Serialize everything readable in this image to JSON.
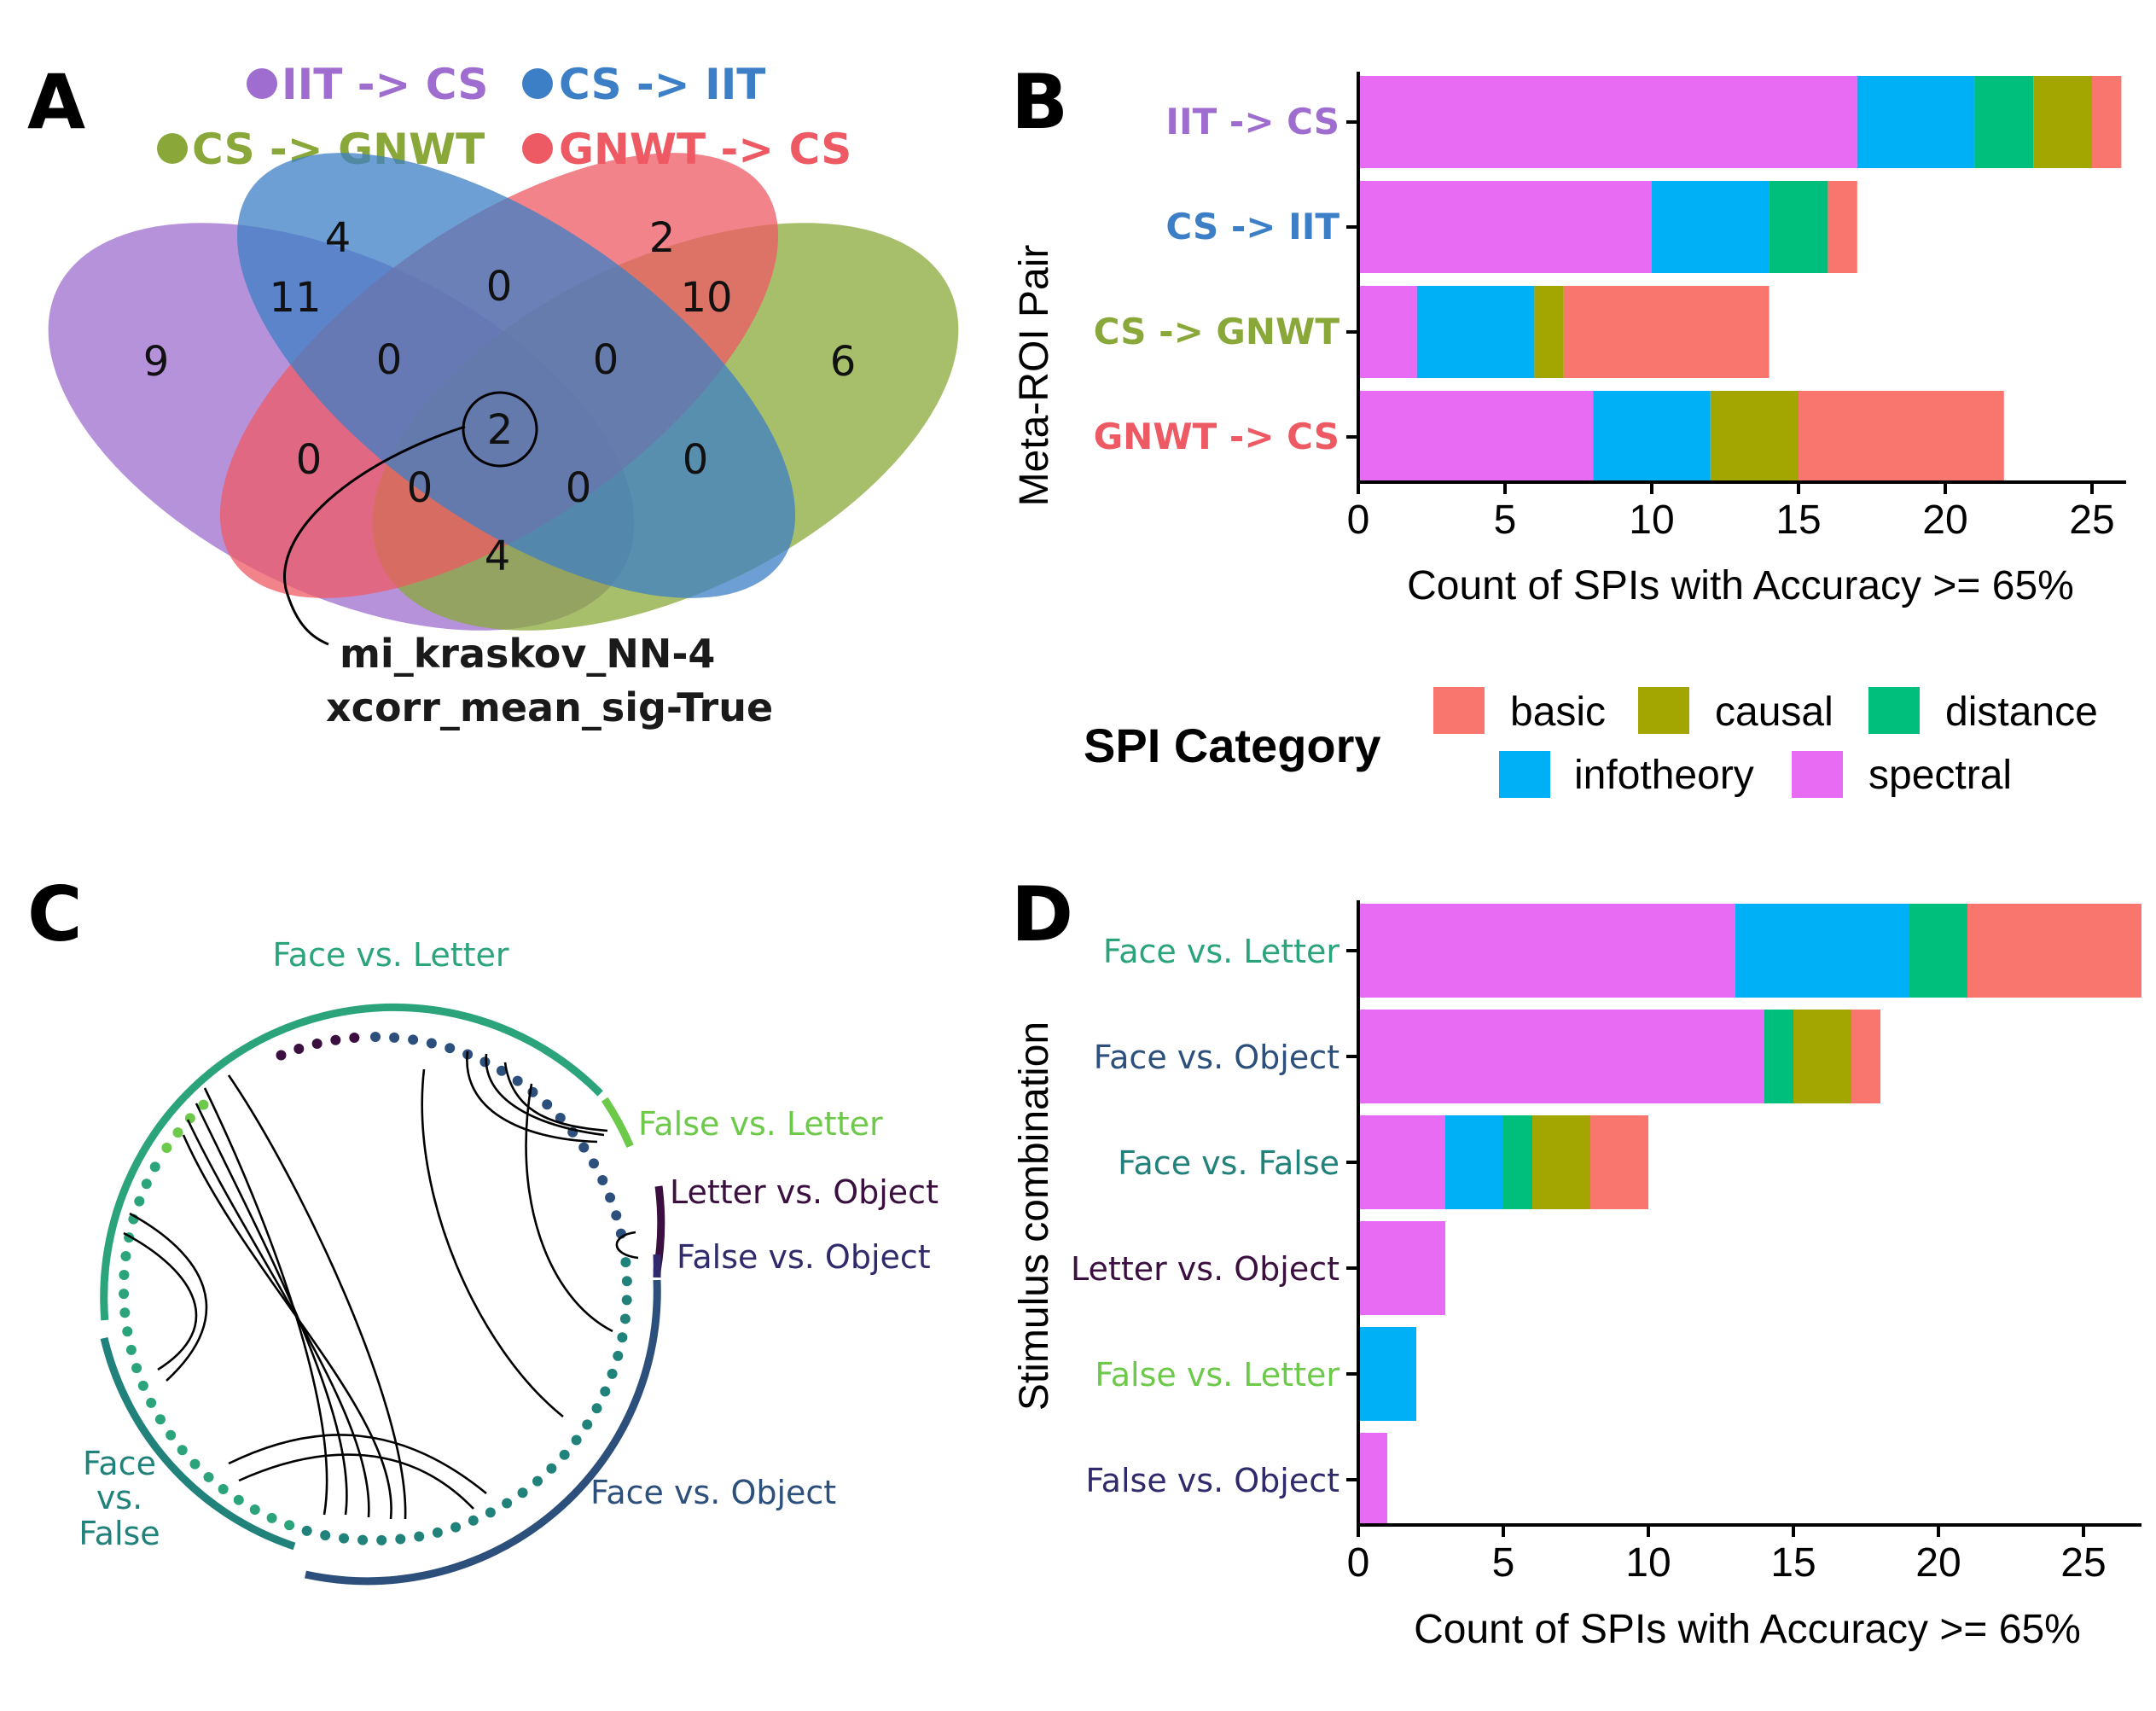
{
  "panel_letters": [
    "A",
    "B",
    "C",
    "D"
  ],
  "colors": {
    "iit_cs": "#9e6dcf",
    "cs_iit": "#3d7fc6",
    "cs_gnwt": "#8aa83a",
    "gnwt_cs": "#ee5a64",
    "basic": "#f8766d",
    "causal": "#a3a500",
    "distance": "#00bf7d",
    "infotheory": "#00b0f6",
    "spectral": "#e76bf3",
    "face_letter": "#2ba37b",
    "false_letter": "#6cc94a",
    "letter_object": "#3b0f3f",
    "false_object": "#2f2a6b",
    "face_object": "#2c4f7c",
    "face_false": "#20827a"
  },
  "venn": {
    "legend": [
      {
        "label": "IIT -> CS",
        "color": "#9e6dcf"
      },
      {
        "label": "CS -> IIT",
        "color": "#3d7fc6"
      },
      {
        "label": "CS -> GNWT",
        "color": "#8aa83a"
      },
      {
        "label": "GNWT -> CS",
        "color": "#ee5a64"
      }
    ],
    "counts": [
      "9",
      "4",
      "2",
      "6",
      "11",
      "0",
      "10",
      "0",
      "0",
      "2",
      "0",
      "0",
      "0",
      "0",
      "4"
    ],
    "annotation": [
      "mi_kraskov_NN-4",
      "xcorr_mean_sig-True"
    ]
  },
  "chart_data": [
    {
      "panel": "B",
      "type": "bar",
      "orientation": "horizontal",
      "stacked": true,
      "categories": [
        "IIT -> CS",
        "CS -> IIT",
        "CS -> GNWT",
        "GNWT -> CS"
      ],
      "category_colors": [
        "#9e6dcf",
        "#3d7fc6",
        "#8aa83a",
        "#ee5a64"
      ],
      "series": [
        {
          "name": "spectral",
          "values": [
            17,
            10,
            2,
            8
          ]
        },
        {
          "name": "infotheory",
          "values": [
            4,
            4,
            4,
            4
          ]
        },
        {
          "name": "distance",
          "values": [
            2,
            2,
            0,
            0
          ]
        },
        {
          "name": "causal",
          "values": [
            2,
            0,
            1,
            3
          ]
        },
        {
          "name": "basic",
          "values": [
            1,
            1,
            7,
            7
          ]
        }
      ],
      "xlabel": "Count of SPIs with Accuracy >= 65%",
      "ylabel": "Meta-ROI Pair",
      "xlim": [
        0,
        26
      ],
      "xticks": [
        "0",
        "5",
        "10",
        "15",
        "20",
        "25"
      ]
    },
    {
      "panel": "D",
      "type": "bar",
      "orientation": "horizontal",
      "stacked": true,
      "categories": [
        "Face vs. Letter",
        "Face vs. Object",
        "Face vs. False",
        "Letter vs. Object",
        "False vs. Letter",
        "False vs. Object"
      ],
      "category_colors": [
        "#2ba37b",
        "#2c4f7c",
        "#20827a",
        "#3b0f3f",
        "#6cc94a",
        "#2f2a6b"
      ],
      "series": [
        {
          "name": "spectral",
          "values": [
            13,
            14,
            3,
            3,
            0,
            1
          ]
        },
        {
          "name": "infotheory",
          "values": [
            6,
            0,
            2,
            0,
            2,
            0
          ]
        },
        {
          "name": "distance",
          "values": [
            2,
            1,
            1,
            0,
            0,
            0
          ]
        },
        {
          "name": "causal",
          "values": [
            0,
            2,
            2,
            0,
            0,
            0
          ]
        },
        {
          "name": "basic",
          "values": [
            6,
            1,
            2,
            0,
            0,
            0
          ]
        }
      ],
      "xlabel": "Count of SPIs with Accuracy >= 65%",
      "ylabel": "Stimulus combination",
      "xlim": [
        0,
        27
      ],
      "xticks": [
        "0",
        "5",
        "10",
        "15",
        "20",
        "25"
      ]
    }
  ],
  "legend": {
    "title": "SPI Category",
    "items": [
      {
        "label": "basic",
        "color": "#f8766d"
      },
      {
        "label": "causal",
        "color": "#a3a500"
      },
      {
        "label": "distance",
        "color": "#00bf7d"
      },
      {
        "label": "infotheory",
        "color": "#00b0f6"
      },
      {
        "label": "spectral",
        "color": "#e76bf3"
      }
    ]
  },
  "chord": {
    "sectors": [
      {
        "label": "Face vs. Letter",
        "color": "#2ba37b"
      },
      {
        "label": "False vs. Letter",
        "color": "#6cc94a"
      },
      {
        "label": "Letter vs. Object",
        "color": "#3b0f3f"
      },
      {
        "label": "False vs. Object",
        "color": "#2f2a6b"
      },
      {
        "label": "Face vs. Object",
        "color": "#2c4f7c"
      },
      {
        "label": "Face",
        "label_line2": "vs.",
        "label_line3": "False",
        "color": "#20827a"
      }
    ]
  }
}
